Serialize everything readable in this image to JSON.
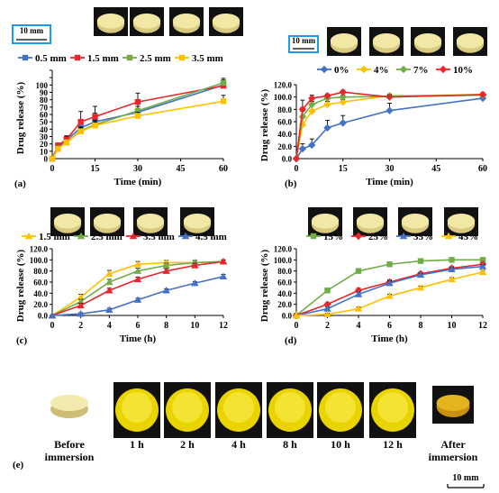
{
  "chart_data": [
    {
      "panel": "(a)",
      "type": "line",
      "xlabel": "Time (min)",
      "ylabel": "Drug release (%)",
      "xlim": [
        0,
        60
      ],
      "ylim": [
        0,
        120
      ],
      "xticks": [
        0,
        15,
        30,
        45,
        60
      ],
      "yticks": [
        0,
        10,
        20,
        30,
        40,
        50,
        60,
        70,
        80,
        90,
        100,
        110,
        120
      ],
      "scale_label": "10 mm",
      "x": [
        0,
        2,
        5,
        10,
        15,
        30,
        60
      ],
      "series": [
        {
          "name": "0.5 mm",
          "color": "#4472C4",
          "marker": "square",
          "values": [
            0,
            15,
            25,
            42,
            50,
            63,
            100
          ]
        },
        {
          "name": "1.5 mm",
          "color": "#E8262B",
          "marker": "square",
          "values": [
            0,
            18,
            26,
            50,
            57,
            77,
            99
          ]
        },
        {
          "name": "2.5 mm",
          "color": "#70AD47",
          "marker": "square",
          "values": [
            0,
            14,
            22,
            38,
            46,
            65,
            103
          ]
        },
        {
          "name": "3.5 mm",
          "color": "#FFC000",
          "marker": "square",
          "values": [
            0,
            13,
            22,
            37,
            45,
            58,
            78
          ]
        }
      ],
      "errors": [
        [
          0,
          3,
          5,
          10,
          12,
          12,
          7
        ],
        [
          0,
          3,
          5,
          14,
          14,
          12,
          5
        ],
        [
          0,
          2,
          3,
          5,
          6,
          6,
          6
        ],
        [
          0,
          2,
          3,
          5,
          5,
          5,
          8
        ]
      ]
    },
    {
      "panel": "(b)",
      "type": "line",
      "xlabel": "Time (min)",
      "ylabel": "Drug release (%)",
      "xlim": [
        0,
        60
      ],
      "ylim": [
        0,
        120
      ],
      "xticks": [
        0,
        15,
        30,
        45,
        60
      ],
      "yticks": [
        0,
        20,
        40,
        60,
        80,
        100,
        120
      ],
      "scale_label": "10 mm",
      "x": [
        0,
        2,
        5,
        10,
        15,
        30,
        60
      ],
      "series": [
        {
          "name": "0%",
          "color": "#4472C4",
          "marker": "diamond",
          "values": [
            0,
            16,
            22,
            50,
            58,
            78,
            98
          ]
        },
        {
          "name": "4%",
          "color": "#FFC000",
          "marker": "diamond",
          "values": [
            0,
            55,
            77,
            88,
            92,
            102,
            104
          ]
        },
        {
          "name": "7%",
          "color": "#70AD47",
          "marker": "diamond",
          "values": [
            0,
            68,
            88,
            98,
            100,
            101,
            103
          ]
        },
        {
          "name": "10%",
          "color": "#E8262B",
          "marker": "diamond",
          "values": [
            0,
            80,
            98,
            102,
            108,
            100,
            104
          ]
        }
      ],
      "errors": [
        [
          0,
          8,
          10,
          12,
          12,
          12,
          4
        ],
        [
          0,
          22,
          12,
          5,
          4,
          3,
          3
        ],
        [
          0,
          15,
          5,
          3,
          3,
          3,
          3
        ],
        [
          0,
          15,
          5,
          3,
          3,
          3,
          3
        ]
      ]
    },
    {
      "panel": "(c)",
      "type": "line",
      "xlabel": "Time (h)",
      "ylabel": "Drug release (%)",
      "xlim": [
        0,
        12
      ],
      "ylim": [
        0,
        120
      ],
      "xticks": [
        0,
        2,
        4,
        6,
        8,
        10,
        12
      ],
      "yticks": [
        0,
        20,
        40,
        60,
        80,
        100,
        120
      ],
      "x": [
        0,
        2,
        4,
        6,
        8,
        10,
        12
      ],
      "series": [
        {
          "name": "1.5 mm",
          "color": "#FFC000",
          "marker": "triangle",
          "values": [
            0,
            33,
            75,
            92,
            95,
            95,
            97
          ]
        },
        {
          "name": "2.5 mm",
          "color": "#70AD47",
          "marker": "triangle",
          "values": [
            0,
            25,
            60,
            80,
            90,
            95,
            97
          ]
        },
        {
          "name": "3.5 mm",
          "color": "#E8262B",
          "marker": "triangle",
          "values": [
            0,
            18,
            45,
            65,
            80,
            90,
            97
          ]
        },
        {
          "name": "4.5 mm",
          "color": "#4472C4",
          "marker": "triangle",
          "values": [
            0,
            3,
            10,
            28,
            45,
            58,
            70
          ]
        }
      ],
      "errors": [
        [
          0,
          5,
          6,
          5,
          4,
          4,
          3
        ],
        [
          0,
          4,
          5,
          5,
          4,
          4,
          3
        ],
        [
          0,
          4,
          4,
          4,
          4,
          4,
          3
        ],
        [
          0,
          2,
          3,
          3,
          3,
          3,
          4
        ]
      ]
    },
    {
      "panel": "(d)",
      "type": "line",
      "xlabel": "Time (h)",
      "ylabel": "Drug release (%)",
      "xlim": [
        0,
        12
      ],
      "ylim": [
        0,
        120
      ],
      "xticks": [
        0,
        2,
        4,
        6,
        8,
        10,
        12
      ],
      "yticks": [
        0,
        20,
        40,
        60,
        80,
        100,
        120
      ],
      "x": [
        0,
        2,
        4,
        6,
        8,
        10,
        12
      ],
      "series": [
        {
          "name": "15%",
          "color": "#70AD47",
          "marker": "square",
          "values": [
            0,
            45,
            80,
            92,
            98,
            100,
            100
          ]
        },
        {
          "name": "25%",
          "color": "#E8262B",
          "marker": "diamond",
          "values": [
            0,
            20,
            45,
            60,
            75,
            85,
            92
          ]
        },
        {
          "name": "35%",
          "color": "#4472C4",
          "marker": "triangle",
          "values": [
            0,
            12,
            38,
            58,
            73,
            83,
            88
          ]
        },
        {
          "name": "45%",
          "color": "#FFC000",
          "marker": "triangle",
          "values": [
            0,
            2,
            12,
            35,
            50,
            65,
            78
          ]
        }
      ],
      "errors": [
        [
          0,
          3,
          3,
          3,
          2,
          2,
          2
        ],
        [
          0,
          3,
          4,
          4,
          3,
          3,
          3
        ],
        [
          0,
          3,
          4,
          4,
          3,
          3,
          3
        ],
        [
          0,
          2,
          3,
          3,
          3,
          3,
          3
        ]
      ]
    }
  ],
  "photo_strip": {
    "panel": "(e)",
    "labels": [
      "Before immersion",
      "1 h",
      "2 h",
      "4 h",
      "8 h",
      "10 h",
      "12 h",
      "After immersion"
    ],
    "scale_label": "10 mm"
  }
}
